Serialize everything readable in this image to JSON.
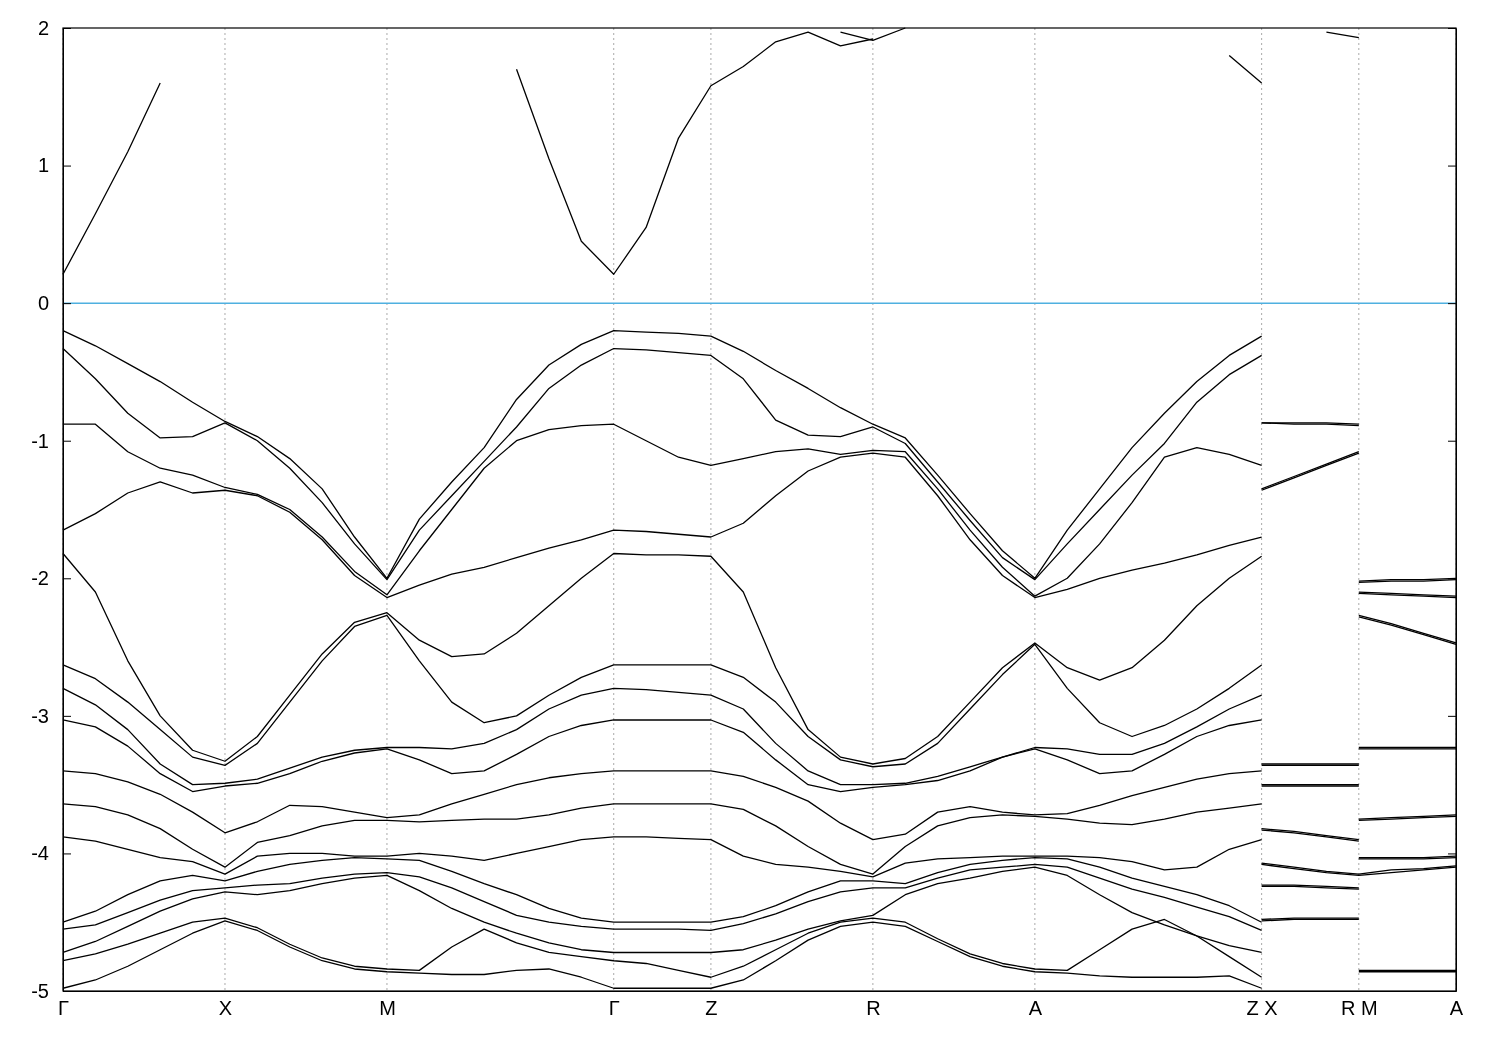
{
  "chart_data": {
    "type": "line",
    "categories": [
      "Γ",
      null,
      null,
      null,
      null,
      "X",
      null,
      null,
      null,
      null,
      "M",
      null,
      null,
      null,
      null,
      null,
      null,
      "Γ",
      null,
      null,
      "Z",
      null,
      null,
      null,
      null,
      "R",
      null,
      null,
      null,
      null,
      "A",
      null,
      null,
      null,
      null,
      null,
      null,
      "Z X",
      null,
      null,
      "R M",
      null,
      null,
      "A"
    ],
    "ylim": [
      -5,
      2
    ],
    "yticks": [
      -5,
      -4,
      -3,
      -2,
      -1,
      0,
      1,
      2
    ],
    "grid": "x",
    "ref_lines": [
      {
        "axis": "y",
        "value": 0,
        "color": "#4fb0e0"
      }
    ],
    "series": [
      {
        "color": "#000000",
        "values": [
          0.21,
          0.65,
          1.1,
          1.6,
          null,
          null,
          null,
          null,
          null,
          null,
          null,
          null,
          null,
          null,
          1.7,
          1.05,
          0.45,
          0.21,
          0.55,
          1.2,
          1.58,
          1.72,
          1.9,
          1.97,
          1.87,
          1.92,
          null,
          null,
          null,
          null,
          null,
          null,
          null,
          null,
          null,
          null,
          1.8,
          1.6,
          null,
          1.97,
          1.93,
          null,
          null,
          null
        ]
      },
      {
        "color": "#000000",
        "values": [
          null,
          null,
          null,
          null,
          null,
          null,
          null,
          null,
          null,
          null,
          null,
          null,
          null,
          null,
          null,
          null,
          null,
          null,
          null,
          null,
          null,
          null,
          null,
          null,
          1.97,
          1.91,
          2.0,
          null,
          null,
          null,
          null,
          null,
          null,
          null,
          null,
          null,
          null,
          null,
          null,
          null,
          null,
          null,
          null,
          null
        ]
      },
      {
        "color": "#000000",
        "values": [
          -0.2,
          -0.31,
          -0.44,
          -0.57,
          -0.72,
          -0.86,
          -0.97,
          -1.13,
          -1.35,
          -1.7,
          -2.0,
          -1.57,
          -1.3,
          -1.05,
          -0.7,
          -0.45,
          -0.3,
          -0.2,
          -0.21,
          -0.22,
          -0.24,
          -0.35,
          -0.49,
          -0.62,
          -0.76,
          -0.88,
          -0.98,
          -1.25,
          -1.53,
          -1.8,
          -2.0,
          -1.65,
          -1.35,
          -1.05,
          -0.8,
          -0.57,
          -0.38,
          -0.24,
          null,
          null,
          null,
          null,
          null,
          null
        ]
      },
      {
        "color": "#000000",
        "values": [
          -0.33,
          -0.55,
          -0.8,
          -0.98,
          -0.97,
          -0.87,
          -1.0,
          -1.2,
          -1.45,
          -1.75,
          -2.01,
          -1.65,
          -1.4,
          -1.15,
          -0.9,
          -0.62,
          -0.45,
          -0.33,
          -0.34,
          -0.36,
          -0.38,
          -0.55,
          -0.85,
          -0.96,
          -0.97,
          -0.9,
          -1.02,
          -1.3,
          -1.58,
          -1.85,
          -2.01,
          -1.75,
          -1.5,
          -1.25,
          -1.02,
          -0.72,
          -0.52,
          -0.38,
          null,
          null,
          null,
          null,
          null,
          null
        ]
      },
      {
        "color": "#000000",
        "values": [
          -0.88,
          -0.88,
          -1.08,
          -1.2,
          -1.25,
          -1.34,
          -1.39,
          -1.5,
          -1.7,
          -1.95,
          -2.12,
          -1.8,
          -1.5,
          -1.2,
          -1.0,
          -0.92,
          -0.89,
          -0.88,
          -1.0,
          -1.12,
          -1.18,
          -1.13,
          -1.08,
          -1.06,
          -1.1,
          -1.07,
          -1.08,
          -1.35,
          -1.65,
          -1.92,
          -2.13,
          -2.0,
          -1.75,
          -1.45,
          -1.12,
          -1.05,
          -1.1,
          -1.18,
          null,
          null,
          null,
          null,
          null,
          null
        ]
      },
      {
        "color": "#000000",
        "values": [
          -1.65,
          -1.53,
          -1.38,
          -1.3,
          -1.38,
          -1.36,
          -1.4,
          -1.52,
          -1.72,
          -1.98,
          -2.14,
          -2.05,
          -1.97,
          -1.92,
          -1.85,
          -1.78,
          -1.72,
          -1.65,
          -1.66,
          -1.68,
          -1.7,
          -1.6,
          -1.4,
          -1.22,
          -1.12,
          -1.09,
          -1.12,
          -1.4,
          -1.72,
          -1.98,
          -2.14,
          -2.08,
          -2.0,
          -1.94,
          -1.89,
          -1.83,
          -1.76,
          -1.7,
          null,
          null,
          null,
          null,
          null,
          null
        ]
      },
      {
        "color": "#000000",
        "values": [
          -1.82,
          -2.1,
          -2.6,
          -3.0,
          -3.25,
          -3.33,
          -3.15,
          -2.85,
          -2.55,
          -2.32,
          -2.25,
          -2.45,
          -2.57,
          -2.55,
          -2.4,
          -2.2,
          -2.0,
          -1.82,
          -1.83,
          -1.83,
          -1.84,
          -2.1,
          -2.65,
          -3.1,
          -3.3,
          -3.35,
          -3.31,
          -3.15,
          -2.9,
          -2.65,
          -2.47,
          -2.65,
          -2.74,
          -2.65,
          -2.45,
          -2.2,
          -2.0,
          -1.84,
          null,
          null,
          null,
          null,
          null,
          null
        ]
      },
      {
        "color": "#000000",
        "values": [
          -2.63,
          -2.73,
          -2.9,
          -3.1,
          -3.3,
          -3.36,
          -3.2,
          -2.9,
          -2.6,
          -2.35,
          -2.27,
          -2.6,
          -2.9,
          -3.05,
          -3.0,
          -2.85,
          -2.72,
          -2.63,
          -2.63,
          -2.63,
          -2.63,
          -2.72,
          -2.9,
          -3.15,
          -3.32,
          -3.37,
          -3.35,
          -3.2,
          -2.95,
          -2.7,
          -2.48,
          -2.8,
          -3.05,
          -3.15,
          -3.07,
          -2.95,
          -2.8,
          -2.63,
          null,
          null,
          null,
          null,
          null,
          null
        ]
      },
      {
        "color": "#000000",
        "values": [
          -2.8,
          -2.92,
          -3.1,
          -3.35,
          -3.5,
          -3.49,
          -3.46,
          -3.38,
          -3.3,
          -3.25,
          -3.23,
          -3.23,
          -3.24,
          -3.2,
          -3.1,
          -2.95,
          -2.85,
          -2.8,
          -2.81,
          -2.83,
          -2.85,
          -2.95,
          -3.2,
          -3.4,
          -3.5,
          -3.5,
          -3.49,
          -3.44,
          -3.37,
          -3.3,
          -3.23,
          -3.24,
          -3.28,
          -3.28,
          -3.2,
          -3.08,
          -2.95,
          -2.85,
          null,
          null,
          null,
          null,
          null,
          null
        ]
      },
      {
        "color": "#000000",
        "values": [
          -3.03,
          -3.08,
          -3.22,
          -3.42,
          -3.55,
          -3.51,
          -3.49,
          -3.42,
          -3.33,
          -3.27,
          -3.24,
          -3.32,
          -3.42,
          -3.4,
          -3.28,
          -3.15,
          -3.07,
          -3.03,
          -3.03,
          -3.03,
          -3.03,
          -3.12,
          -3.32,
          -3.5,
          -3.55,
          -3.52,
          -3.5,
          -3.47,
          -3.4,
          -3.3,
          -3.24,
          -3.32,
          -3.42,
          -3.4,
          -3.28,
          -3.15,
          -3.07,
          -3.03,
          null,
          null,
          null,
          null,
          null,
          null
        ]
      },
      {
        "color": "#000000",
        "values": [
          -3.4,
          -3.42,
          -3.48,
          -3.57,
          -3.7,
          -3.85,
          -3.77,
          -3.65,
          -3.66,
          -3.7,
          -3.74,
          -3.72,
          -3.64,
          -3.57,
          -3.5,
          -3.45,
          -3.42,
          -3.4,
          -3.4,
          -3.4,
          -3.4,
          -3.44,
          -3.52,
          -3.62,
          -3.78,
          -3.9,
          -3.86,
          -3.7,
          -3.66,
          -3.7,
          -3.72,
          -3.71,
          -3.65,
          -3.58,
          -3.52,
          -3.46,
          -3.42,
          -3.4,
          null,
          null,
          null,
          null,
          null,
          null
        ]
      },
      {
        "color": "#000000",
        "values": [
          -3.64,
          -3.66,
          -3.72,
          -3.82,
          -3.97,
          -4.1,
          -3.92,
          -3.87,
          -3.8,
          -3.76,
          -3.76,
          -3.77,
          -3.76,
          -3.75,
          -3.75,
          -3.72,
          -3.67,
          -3.64,
          -3.64,
          -3.64,
          -3.64,
          -3.68,
          -3.8,
          -3.95,
          -4.08,
          -4.15,
          -3.95,
          -3.8,
          -3.74,
          -3.72,
          -3.73,
          -3.75,
          -3.78,
          -3.79,
          -3.75,
          -3.7,
          -3.67,
          -3.64,
          null,
          null,
          null,
          null,
          null,
          null
        ]
      },
      {
        "color": "#000000",
        "values": [
          -3.88,
          -3.91,
          -3.97,
          -4.03,
          -4.06,
          -4.15,
          -4.02,
          -4.0,
          -4.0,
          -4.02,
          -4.02,
          -4.0,
          -4.02,
          -4.05,
          -4.0,
          -3.95,
          -3.9,
          -3.88,
          -3.88,
          -3.89,
          -3.9,
          -4.02,
          -4.08,
          -4.1,
          -4.13,
          -4.17,
          -4.07,
          -4.04,
          -4.03,
          -4.02,
          -4.02,
          -4.02,
          -4.03,
          -4.06,
          -4.12,
          -4.1,
          -3.97,
          -3.9,
          null,
          null,
          null,
          null,
          null,
          null
        ]
      },
      {
        "color": "#000000",
        "values": [
          -4.5,
          -4.42,
          -4.3,
          -4.2,
          -4.16,
          -4.2,
          -4.13,
          -4.08,
          -4.05,
          -4.03,
          -4.04,
          -4.05,
          -4.13,
          -4.22,
          -4.3,
          -4.4,
          -4.47,
          -4.5,
          -4.5,
          -4.5,
          -4.5,
          -4.46,
          -4.38,
          -4.28,
          -4.2,
          -4.2,
          -4.22,
          -4.14,
          -4.08,
          -4.05,
          -4.03,
          -4.04,
          -4.1,
          -4.18,
          -4.24,
          -4.3,
          -4.38,
          -4.5,
          null,
          null,
          null,
          null,
          null,
          null
        ]
      },
      {
        "color": "#000000",
        "values": [
          -4.55,
          -4.52,
          -4.43,
          -4.34,
          -4.27,
          -4.25,
          -4.23,
          -4.22,
          -4.18,
          -4.15,
          -4.14,
          -4.17,
          -4.25,
          -4.35,
          -4.45,
          -4.5,
          -4.53,
          -4.55,
          -4.55,
          -4.55,
          -4.56,
          -4.51,
          -4.44,
          -4.35,
          -4.28,
          -4.25,
          -4.25,
          -4.18,
          -4.12,
          -4.1,
          -4.08,
          -4.1,
          -4.18,
          -4.26,
          -4.32,
          -4.39,
          -4.46,
          -4.56,
          null,
          null,
          null,
          null,
          null,
          null
        ]
      },
      {
        "color": "#000000",
        "values": [
          -4.72,
          -4.64,
          -4.53,
          -4.42,
          -4.33,
          -4.28,
          -4.3,
          -4.27,
          -4.22,
          -4.18,
          -4.16,
          -4.27,
          -4.4,
          -4.5,
          -4.58,
          -4.65,
          -4.7,
          -4.72,
          -4.72,
          -4.72,
          -4.72,
          -4.7,
          -4.63,
          -4.55,
          -4.49,
          -4.45,
          -4.3,
          -4.22,
          -4.18,
          -4.13,
          -4.1,
          -4.16,
          -4.3,
          -4.43,
          -4.52,
          -4.6,
          -4.67,
          -4.72,
          null,
          null,
          null,
          null,
          null,
          null
        ]
      },
      {
        "color": "#000000",
        "values": [
          -4.78,
          -4.73,
          -4.66,
          -4.58,
          -4.5,
          -4.47,
          -4.54,
          -4.66,
          -4.76,
          -4.82,
          -4.84,
          -4.85,
          -4.68,
          -4.55,
          -4.65,
          -4.72,
          -4.75,
          -4.78,
          -4.8,
          -4.85,
          -4.9,
          -4.82,
          -4.7,
          -4.58,
          -4.5,
          -4.47,
          -4.5,
          -4.62,
          -4.73,
          -4.8,
          -4.84,
          -4.85,
          -4.7,
          -4.55,
          -4.48,
          -4.6,
          -4.75,
          -4.9,
          null,
          null,
          null,
          null,
          null,
          null
        ]
      },
      {
        "color": "#000000",
        "values": [
          -4.98,
          -4.92,
          -4.82,
          -4.7,
          -4.58,
          -4.49,
          -4.56,
          -4.68,
          -4.78,
          -4.84,
          -4.86,
          -4.87,
          -4.88,
          -4.88,
          -4.85,
          -4.84,
          -4.9,
          -4.98,
          -4.98,
          -4.98,
          -4.98,
          -4.92,
          -4.78,
          -4.63,
          -4.53,
          -4.5,
          -4.53,
          -4.64,
          -4.75,
          -4.82,
          -4.86,
          -4.87,
          -4.89,
          -4.9,
          -4.9,
          -4.9,
          -4.89,
          -4.98,
          null,
          null,
          null,
          null,
          null,
          null
        ]
      },
      {
        "color": "#000000",
        "values": [
          null,
          null,
          null,
          null,
          null,
          null,
          null,
          null,
          null,
          null,
          null,
          null,
          null,
          null,
          null,
          null,
          null,
          null,
          null,
          null,
          null,
          null,
          null,
          null,
          null,
          null,
          null,
          null,
          null,
          null,
          null,
          null,
          null,
          null,
          null,
          null,
          null,
          -0.87,
          -0.87,
          -0.87,
          -0.88,
          null,
          null,
          null
        ]
      },
      {
        "color": "#000000",
        "values": [
          null,
          null,
          null,
          null,
          null,
          null,
          null,
          null,
          null,
          null,
          null,
          null,
          null,
          null,
          null,
          null,
          null,
          null,
          null,
          null,
          null,
          null,
          null,
          null,
          null,
          null,
          null,
          null,
          null,
          null,
          null,
          null,
          null,
          null,
          null,
          null,
          null,
          -0.87,
          -0.88,
          -0.88,
          -0.89,
          null,
          null,
          null
        ]
      },
      {
        "color": "#000000",
        "values": [
          null,
          null,
          null,
          null,
          null,
          null,
          null,
          null,
          null,
          null,
          null,
          null,
          null,
          null,
          null,
          null,
          null,
          null,
          null,
          null,
          null,
          null,
          null,
          null,
          null,
          null,
          null,
          null,
          null,
          null,
          null,
          null,
          null,
          null,
          null,
          null,
          null,
          -1.35,
          -1.26,
          -1.17,
          -1.08,
          null,
          null,
          null
        ]
      },
      {
        "color": "#000000",
        "values": [
          null,
          null,
          null,
          null,
          null,
          null,
          null,
          null,
          null,
          null,
          null,
          null,
          null,
          null,
          null,
          null,
          null,
          null,
          null,
          null,
          null,
          null,
          null,
          null,
          null,
          null,
          null,
          null,
          null,
          null,
          null,
          null,
          null,
          null,
          null,
          null,
          null,
          -1.36,
          -1.27,
          -1.18,
          -1.09,
          null,
          null,
          null
        ]
      },
      {
        "color": "#000000",
        "values": [
          null,
          null,
          null,
          null,
          null,
          null,
          null,
          null,
          null,
          null,
          null,
          null,
          null,
          null,
          null,
          null,
          null,
          null,
          null,
          null,
          null,
          null,
          null,
          null,
          null,
          null,
          null,
          null,
          null,
          null,
          null,
          null,
          null,
          null,
          null,
          null,
          null,
          -3.35,
          -3.35,
          -3.35,
          -3.35,
          null,
          null,
          null
        ]
      },
      {
        "color": "#000000",
        "values": [
          null,
          null,
          null,
          null,
          null,
          null,
          null,
          null,
          null,
          null,
          null,
          null,
          null,
          null,
          null,
          null,
          null,
          null,
          null,
          null,
          null,
          null,
          null,
          null,
          null,
          null,
          null,
          null,
          null,
          null,
          null,
          null,
          null,
          null,
          null,
          null,
          null,
          -3.36,
          -3.36,
          -3.36,
          -3.36,
          null,
          null,
          null
        ]
      },
      {
        "color": "#000000",
        "values": [
          null,
          null,
          null,
          null,
          null,
          null,
          null,
          null,
          null,
          null,
          null,
          null,
          null,
          null,
          null,
          null,
          null,
          null,
          null,
          null,
          null,
          null,
          null,
          null,
          null,
          null,
          null,
          null,
          null,
          null,
          null,
          null,
          null,
          null,
          null,
          null,
          null,
          -3.5,
          -3.5,
          -3.5,
          -3.5,
          null,
          null,
          null
        ]
      },
      {
        "color": "#000000",
        "values": [
          null,
          null,
          null,
          null,
          null,
          null,
          null,
          null,
          null,
          null,
          null,
          null,
          null,
          null,
          null,
          null,
          null,
          null,
          null,
          null,
          null,
          null,
          null,
          null,
          null,
          null,
          null,
          null,
          null,
          null,
          null,
          null,
          null,
          null,
          null,
          null,
          null,
          -3.51,
          -3.51,
          -3.51,
          -3.51,
          null,
          null,
          null
        ]
      },
      {
        "color": "#000000",
        "values": [
          null,
          null,
          null,
          null,
          null,
          null,
          null,
          null,
          null,
          null,
          null,
          null,
          null,
          null,
          null,
          null,
          null,
          null,
          null,
          null,
          null,
          null,
          null,
          null,
          null,
          null,
          null,
          null,
          null,
          null,
          null,
          null,
          null,
          null,
          null,
          null,
          null,
          -3.82,
          -3.84,
          -3.87,
          -3.9,
          null,
          null,
          null
        ]
      },
      {
        "color": "#000000",
        "values": [
          null,
          null,
          null,
          null,
          null,
          null,
          null,
          null,
          null,
          null,
          null,
          null,
          null,
          null,
          null,
          null,
          null,
          null,
          null,
          null,
          null,
          null,
          null,
          null,
          null,
          null,
          null,
          null,
          null,
          null,
          null,
          null,
          null,
          null,
          null,
          null,
          null,
          -3.83,
          -3.85,
          -3.88,
          -3.91,
          null,
          null,
          null
        ]
      },
      {
        "color": "#000000",
        "values": [
          null,
          null,
          null,
          null,
          null,
          null,
          null,
          null,
          null,
          null,
          null,
          null,
          null,
          null,
          null,
          null,
          null,
          null,
          null,
          null,
          null,
          null,
          null,
          null,
          null,
          null,
          null,
          null,
          null,
          null,
          null,
          null,
          null,
          null,
          null,
          null,
          null,
          -4.07,
          -4.1,
          -4.13,
          -4.15,
          -4.12,
          -4.11,
          -4.09
        ]
      },
      {
        "color": "#000000",
        "values": [
          null,
          null,
          null,
          null,
          null,
          null,
          null,
          null,
          null,
          null,
          null,
          null,
          null,
          null,
          null,
          null,
          null,
          null,
          null,
          null,
          null,
          null,
          null,
          null,
          null,
          null,
          null,
          null,
          null,
          null,
          null,
          null,
          null,
          null,
          null,
          null,
          null,
          -4.08,
          -4.11,
          -4.14,
          -4.16,
          -4.14,
          -4.12,
          -4.1
        ]
      },
      {
        "color": "#000000",
        "values": [
          null,
          null,
          null,
          null,
          null,
          null,
          null,
          null,
          null,
          null,
          null,
          null,
          null,
          null,
          null,
          null,
          null,
          null,
          null,
          null,
          null,
          null,
          null,
          null,
          null,
          null,
          null,
          null,
          null,
          null,
          null,
          null,
          null,
          null,
          null,
          null,
          null,
          -4.23,
          -4.23,
          -4.24,
          -4.25,
          null,
          null,
          null
        ]
      },
      {
        "color": "#000000",
        "values": [
          null,
          null,
          null,
          null,
          null,
          null,
          null,
          null,
          null,
          null,
          null,
          null,
          null,
          null,
          null,
          null,
          null,
          null,
          null,
          null,
          null,
          null,
          null,
          null,
          null,
          null,
          null,
          null,
          null,
          null,
          null,
          null,
          null,
          null,
          null,
          null,
          null,
          -4.24,
          -4.24,
          -4.25,
          -4.26,
          null,
          null,
          null
        ]
      },
      {
        "color": "#000000",
        "values": [
          null,
          null,
          null,
          null,
          null,
          null,
          null,
          null,
          null,
          null,
          null,
          null,
          null,
          null,
          null,
          null,
          null,
          null,
          null,
          null,
          null,
          null,
          null,
          null,
          null,
          null,
          null,
          null,
          null,
          null,
          null,
          null,
          null,
          null,
          null,
          null,
          null,
          -4.48,
          -4.47,
          -4.47,
          -4.47,
          null,
          null,
          null
        ]
      },
      {
        "color": "#000000",
        "values": [
          null,
          null,
          null,
          null,
          null,
          null,
          null,
          null,
          null,
          null,
          null,
          null,
          null,
          null,
          null,
          null,
          null,
          null,
          null,
          null,
          null,
          null,
          null,
          null,
          null,
          null,
          null,
          null,
          null,
          null,
          null,
          null,
          null,
          null,
          null,
          null,
          null,
          -4.49,
          -4.48,
          -4.48,
          -4.48,
          null,
          null,
          null
        ]
      },
      {
        "color": "#000000",
        "values": [
          null,
          null,
          null,
          null,
          null,
          null,
          null,
          null,
          null,
          null,
          null,
          null,
          null,
          null,
          null,
          null,
          null,
          null,
          null,
          null,
          null,
          null,
          null,
          null,
          null,
          null,
          null,
          null,
          null,
          null,
          null,
          null,
          null,
          null,
          null,
          null,
          null,
          null,
          null,
          null,
          -2.02,
          -2.01,
          -2.01,
          -2.0
        ]
      },
      {
        "color": "#000000",
        "values": [
          null,
          null,
          null,
          null,
          null,
          null,
          null,
          null,
          null,
          null,
          null,
          null,
          null,
          null,
          null,
          null,
          null,
          null,
          null,
          null,
          null,
          null,
          null,
          null,
          null,
          null,
          null,
          null,
          null,
          null,
          null,
          null,
          null,
          null,
          null,
          null,
          null,
          null,
          null,
          null,
          -2.03,
          -2.02,
          -2.02,
          -2.01
        ]
      },
      {
        "color": "#000000",
        "values": [
          null,
          null,
          null,
          null,
          null,
          null,
          null,
          null,
          null,
          null,
          null,
          null,
          null,
          null,
          null,
          null,
          null,
          null,
          null,
          null,
          null,
          null,
          null,
          null,
          null,
          null,
          null,
          null,
          null,
          null,
          null,
          null,
          null,
          null,
          null,
          null,
          null,
          null,
          null,
          null,
          -2.1,
          -2.11,
          -2.12,
          -2.13
        ]
      },
      {
        "color": "#000000",
        "values": [
          null,
          null,
          null,
          null,
          null,
          null,
          null,
          null,
          null,
          null,
          null,
          null,
          null,
          null,
          null,
          null,
          null,
          null,
          null,
          null,
          null,
          null,
          null,
          null,
          null,
          null,
          null,
          null,
          null,
          null,
          null,
          null,
          null,
          null,
          null,
          null,
          null,
          null,
          null,
          null,
          -2.11,
          -2.12,
          -2.13,
          -2.14
        ]
      },
      {
        "color": "#000000",
        "values": [
          null,
          null,
          null,
          null,
          null,
          null,
          null,
          null,
          null,
          null,
          null,
          null,
          null,
          null,
          null,
          null,
          null,
          null,
          null,
          null,
          null,
          null,
          null,
          null,
          null,
          null,
          null,
          null,
          null,
          null,
          null,
          null,
          null,
          null,
          null,
          null,
          null,
          null,
          null,
          null,
          -2.27,
          -2.33,
          -2.4,
          -2.47
        ]
      },
      {
        "color": "#000000",
        "values": [
          null,
          null,
          null,
          null,
          null,
          null,
          null,
          null,
          null,
          null,
          null,
          null,
          null,
          null,
          null,
          null,
          null,
          null,
          null,
          null,
          null,
          null,
          null,
          null,
          null,
          null,
          null,
          null,
          null,
          null,
          null,
          null,
          null,
          null,
          null,
          null,
          null,
          null,
          null,
          null,
          -2.28,
          -2.34,
          -2.41,
          -2.48
        ]
      },
      {
        "color": "#000000",
        "values": [
          null,
          null,
          null,
          null,
          null,
          null,
          null,
          null,
          null,
          null,
          null,
          null,
          null,
          null,
          null,
          null,
          null,
          null,
          null,
          null,
          null,
          null,
          null,
          null,
          null,
          null,
          null,
          null,
          null,
          null,
          null,
          null,
          null,
          null,
          null,
          null,
          null,
          null,
          null,
          null,
          -3.23,
          -3.23,
          -3.23,
          -3.23
        ]
      },
      {
        "color": "#000000",
        "values": [
          null,
          null,
          null,
          null,
          null,
          null,
          null,
          null,
          null,
          null,
          null,
          null,
          null,
          null,
          null,
          null,
          null,
          null,
          null,
          null,
          null,
          null,
          null,
          null,
          null,
          null,
          null,
          null,
          null,
          null,
          null,
          null,
          null,
          null,
          null,
          null,
          null,
          null,
          null,
          null,
          -3.24,
          -3.24,
          -3.24,
          -3.24
        ]
      },
      {
        "color": "#000000",
        "values": [
          null,
          null,
          null,
          null,
          null,
          null,
          null,
          null,
          null,
          null,
          null,
          null,
          null,
          null,
          null,
          null,
          null,
          null,
          null,
          null,
          null,
          null,
          null,
          null,
          null,
          null,
          null,
          null,
          null,
          null,
          null,
          null,
          null,
          null,
          null,
          null,
          null,
          null,
          null,
          null,
          -3.75,
          -3.74,
          -3.73,
          -3.72
        ]
      },
      {
        "color": "#000000",
        "values": [
          null,
          null,
          null,
          null,
          null,
          null,
          null,
          null,
          null,
          null,
          null,
          null,
          null,
          null,
          null,
          null,
          null,
          null,
          null,
          null,
          null,
          null,
          null,
          null,
          null,
          null,
          null,
          null,
          null,
          null,
          null,
          null,
          null,
          null,
          null,
          null,
          null,
          null,
          null,
          null,
          -3.76,
          -3.75,
          -3.74,
          -3.73
        ]
      },
      {
        "color": "#000000",
        "values": [
          null,
          null,
          null,
          null,
          null,
          null,
          null,
          null,
          null,
          null,
          null,
          null,
          null,
          null,
          null,
          null,
          null,
          null,
          null,
          null,
          null,
          null,
          null,
          null,
          null,
          null,
          null,
          null,
          null,
          null,
          null,
          null,
          null,
          null,
          null,
          null,
          null,
          null,
          null,
          null,
          -4.03,
          -4.03,
          -4.03,
          -4.02
        ]
      },
      {
        "color": "#000000",
        "values": [
          null,
          null,
          null,
          null,
          null,
          null,
          null,
          null,
          null,
          null,
          null,
          null,
          null,
          null,
          null,
          null,
          null,
          null,
          null,
          null,
          null,
          null,
          null,
          null,
          null,
          null,
          null,
          null,
          null,
          null,
          null,
          null,
          null,
          null,
          null,
          null,
          null,
          null,
          null,
          null,
          -4.04,
          -4.04,
          -4.04,
          -4.03
        ]
      },
      {
        "color": "#000000",
        "values": [
          null,
          null,
          null,
          null,
          null,
          null,
          null,
          null,
          null,
          null,
          null,
          null,
          null,
          null,
          null,
          null,
          null,
          null,
          null,
          null,
          null,
          null,
          null,
          null,
          null,
          null,
          null,
          null,
          null,
          null,
          null,
          null,
          null,
          null,
          null,
          null,
          null,
          null,
          null,
          null,
          -4.85,
          -4.85,
          -4.85,
          -4.85
        ]
      },
      {
        "color": "#000000",
        "values": [
          null,
          null,
          null,
          null,
          null,
          null,
          null,
          null,
          null,
          null,
          null,
          null,
          null,
          null,
          null,
          null,
          null,
          null,
          null,
          null,
          null,
          null,
          null,
          null,
          null,
          null,
          null,
          null,
          null,
          null,
          null,
          null,
          null,
          null,
          null,
          null,
          null,
          null,
          null,
          null,
          -4.86,
          -4.86,
          -4.86,
          -4.86
        ]
      }
    ]
  }
}
